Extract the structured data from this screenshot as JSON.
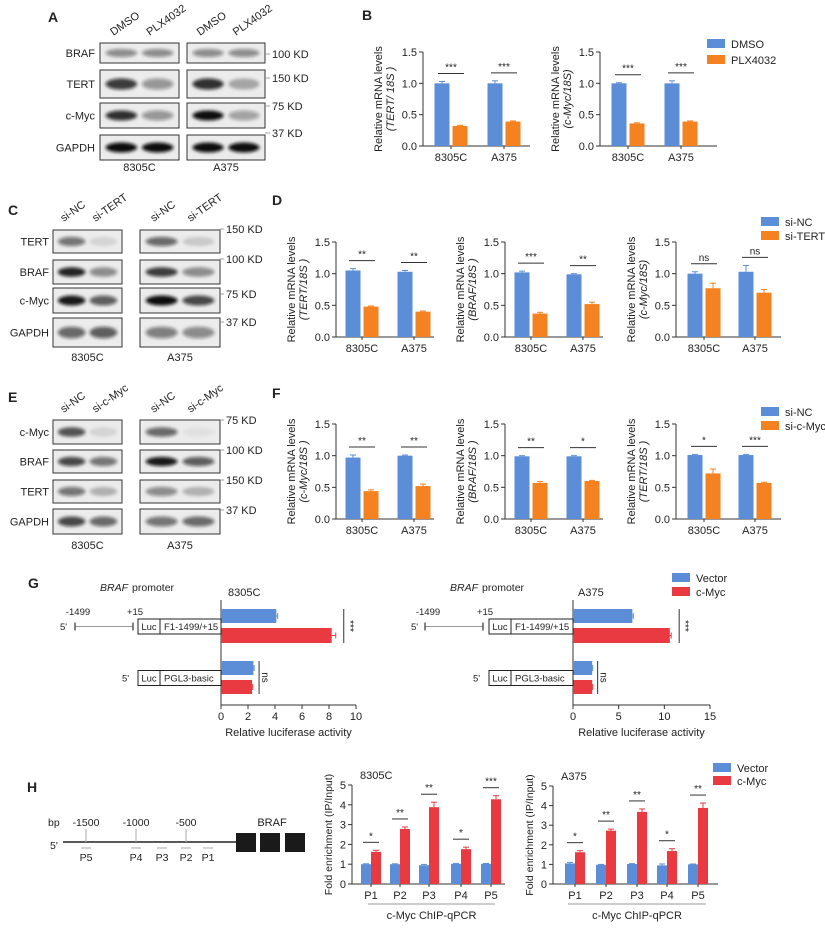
{
  "panel_labels": [
    "A",
    "B",
    "C",
    "D",
    "E",
    "F",
    "G",
    "H"
  ],
  "blots": [
    {
      "panel": "A",
      "columns": [
        "DMSO",
        "PLX4032",
        "DMSO",
        "PLX4032"
      ],
      "cell_lines": [
        "8305C",
        "A375"
      ],
      "rows": [
        {
          "protein": "BRAF",
          "mw": "100 KD",
          "band_intensity": [
            0.45,
            0.45,
            0.45,
            0.45
          ]
        },
        {
          "protein": "TERT",
          "mw": "150 KD",
          "band_intensity": [
            0.8,
            0.4,
            0.85,
            0.3
          ]
        },
        {
          "protein": "c-Myc",
          "mw": "75 KD",
          "band_intensity": [
            0.85,
            0.4,
            1.0,
            0.35
          ]
        },
        {
          "protein": "GAPDH",
          "mw": "37 KD",
          "band_intensity": [
            1.0,
            1.0,
            1.0,
            1.0
          ]
        }
      ]
    },
    {
      "panel": "C",
      "columns": [
        "si-NC",
        "si-TERT",
        "si-NC",
        "si-TERT"
      ],
      "cell_lines": [
        "8305C",
        "A375"
      ],
      "rows": [
        {
          "protein": "TERT",
          "mw": "150 KD",
          "band_intensity": [
            0.55,
            0.1,
            0.6,
            0.15
          ]
        },
        {
          "protein": "BRAF",
          "mw": "100 KD",
          "band_intensity": [
            0.9,
            0.45,
            0.8,
            0.45
          ]
        },
        {
          "protein": "c-Myc",
          "mw": "75 KD",
          "band_intensity": [
            0.95,
            0.65,
            1.0,
            0.75
          ]
        },
        {
          "protein": "GAPDH",
          "mw": "37 KD",
          "band_intensity": [
            0.6,
            0.65,
            0.5,
            0.45
          ]
        }
      ]
    },
    {
      "panel": "E",
      "columns": [
        "si-NC",
        "si-c-Myc",
        "si-NC",
        "si-c-Myc"
      ],
      "cell_lines": [
        "8305C",
        "A375"
      ],
      "rows": [
        {
          "protein": "c-Myc",
          "mw": "75 KD",
          "band_intensity": [
            0.7,
            0.1,
            0.6,
            0.05
          ]
        },
        {
          "protein": "BRAF",
          "mw": "100 KD",
          "band_intensity": [
            0.75,
            0.55,
            0.95,
            0.65
          ]
        },
        {
          "protein": "TERT",
          "mw": "150 KD",
          "band_intensity": [
            0.55,
            0.25,
            0.45,
            0.25
          ]
        },
        {
          "protein": "GAPDH",
          "mw": "37 KD",
          "band_intensity": [
            0.75,
            0.6,
            0.55,
            0.6
          ]
        }
      ]
    }
  ],
  "chart_data": [
    {
      "panel": "B",
      "type": "bar",
      "categories": [
        "8305C",
        "A375"
      ],
      "ylabel": [
        "Relative mRNA levels",
        "(TERT/ 18S )"
      ],
      "ylim": [
        0,
        1.5
      ],
      "yticks": [
        "0.0",
        "0.5",
        "1.0",
        "1.5"
      ],
      "series": [
        {
          "name": "DMSO",
          "color": "#5b8ed6",
          "values": [
            1.0,
            1.0
          ],
          "errors": [
            0.03,
            0.04
          ]
        },
        {
          "name": "PLX4032",
          "color": "#f58220",
          "values": [
            0.32,
            0.39
          ],
          "errors": [
            0.01,
            0.01
          ]
        }
      ],
      "significance": [
        "***",
        "***"
      ]
    },
    {
      "panel": "B",
      "type": "bar",
      "categories": [
        "8305C",
        "A375"
      ],
      "ylabel": [
        "Relative mRNA levels",
        "(c-Myc/18S)"
      ],
      "ylim": [
        0,
        1.5
      ],
      "yticks": [
        "0.0",
        "0.5",
        "1.0",
        "1.5"
      ],
      "series": [
        {
          "name": "DMSO",
          "color": "#5b8ed6",
          "values": [
            1.0,
            1.0
          ],
          "errors": [
            0.01,
            0.04
          ]
        },
        {
          "name": "PLX4032",
          "color": "#f58220",
          "values": [
            0.36,
            0.39
          ],
          "errors": [
            0.01,
            0.01
          ]
        }
      ],
      "significance": [
        "***",
        "***"
      ]
    },
    {
      "panel": "D",
      "type": "bar",
      "categories": [
        "8305C",
        "A375"
      ],
      "ylabel": [
        "Relative mRNA levels",
        "(TERT/18S )"
      ],
      "ylim": [
        0,
        1.5
      ],
      "yticks": [
        "0.0",
        "0.5",
        "1.0",
        "1.5"
      ],
      "series": [
        {
          "name": "si-NC",
          "color": "#5b8ed6",
          "values": [
            1.05,
            1.03
          ],
          "errors": [
            0.03,
            0.02
          ]
        },
        {
          "name": "si-TERT",
          "color": "#f58220",
          "values": [
            0.48,
            0.4
          ],
          "errors": [
            0.01,
            0.01
          ]
        }
      ],
      "significance": [
        "**",
        "**"
      ]
    },
    {
      "panel": "D",
      "type": "bar",
      "categories": [
        "8305C",
        "A375"
      ],
      "ylabel": [
        "Relative mRNA levels",
        "(BRAF/18S )"
      ],
      "ylim": [
        0,
        1.5
      ],
      "yticks": [
        "0.0",
        "0.5",
        "1.0",
        "1.5"
      ],
      "series": [
        {
          "name": "si-NC",
          "color": "#5b8ed6",
          "values": [
            1.02,
            0.99
          ],
          "errors": [
            0.02,
            0.01
          ]
        },
        {
          "name": "si-TERT",
          "color": "#f58220",
          "values": [
            0.37,
            0.52
          ],
          "errors": [
            0.02,
            0.03
          ]
        }
      ],
      "significance": [
        "***",
        "**"
      ]
    },
    {
      "panel": "D",
      "type": "bar",
      "categories": [
        "8305C",
        "A375"
      ],
      "ylabel": [
        "Relative mRNA levels",
        "(c-Myc/18S)"
      ],
      "ylim": [
        0,
        1.5
      ],
      "yticks": [
        "0.0",
        "0.5",
        "1.0",
        "1.5"
      ],
      "series": [
        {
          "name": "si-NC",
          "color": "#5b8ed6",
          "values": [
            1.0,
            1.03
          ],
          "errors": [
            0.03,
            0.1
          ]
        },
        {
          "name": "si-TERT",
          "color": "#f58220",
          "values": [
            0.77,
            0.7
          ],
          "errors": [
            0.08,
            0.05
          ]
        }
      ],
      "significance": [
        "ns",
        "ns"
      ]
    },
    {
      "panel": "F",
      "type": "bar",
      "categories": [
        "8305C",
        "A375"
      ],
      "ylabel": [
        "Relative mRNA levels",
        "(c-Myc/18S )"
      ],
      "ylim": [
        0,
        1.5
      ],
      "yticks": [
        "0.0",
        "0.5",
        "1.0",
        "1.5"
      ],
      "series": [
        {
          "name": "si-NC",
          "color": "#5b8ed6",
          "values": [
            0.97,
            1.0
          ],
          "errors": [
            0.04,
            0.01
          ]
        },
        {
          "name": "si-c-Myc",
          "color": "#f58220",
          "values": [
            0.44,
            0.52
          ],
          "errors": [
            0.02,
            0.03
          ]
        }
      ],
      "significance": [
        "**",
        "**"
      ]
    },
    {
      "panel": "F",
      "type": "bar",
      "categories": [
        "8305C",
        "A375"
      ],
      "ylabel": [
        "Relative mRNA levels",
        "(BRAF/18S )"
      ],
      "ylim": [
        0,
        1.5
      ],
      "yticks": [
        "0.0",
        "0.5",
        "1.0",
        "1.5"
      ],
      "series": [
        {
          "name": "si-NC",
          "color": "#5b8ed6",
          "values": [
            0.99,
            0.99
          ],
          "errors": [
            0.01,
            0.01
          ]
        },
        {
          "name": "si-c-Myc",
          "color": "#f58220",
          "values": [
            0.57,
            0.6
          ],
          "errors": [
            0.02,
            0.01
          ]
        }
      ],
      "significance": [
        "**",
        "*"
      ]
    },
    {
      "panel": "F",
      "type": "bar",
      "categories": [
        "8305C",
        "A375"
      ],
      "ylabel": [
        "Relative mRNA levels",
        "(TERT/18S )"
      ],
      "ylim": [
        0,
        1.5
      ],
      "yticks": [
        "0.0",
        "0.5",
        "1.0",
        "1.5"
      ],
      "series": [
        {
          "name": "si-NC",
          "color": "#5b8ed6",
          "values": [
            1.01,
            1.01
          ],
          "errors": [
            0.01,
            0.01
          ]
        },
        {
          "name": "si-c-Myc",
          "color": "#f58220",
          "values": [
            0.72,
            0.57
          ],
          "errors": [
            0.07,
            0.01
          ]
        }
      ],
      "significance": [
        "*",
        "***"
      ]
    },
    {
      "panel": "G",
      "type": "bar",
      "orientation": "horizontal",
      "title": "8305C",
      "categories": [
        "F1-1499/+15",
        "PGL3-basic"
      ],
      "xlabel": "Relative luciferase activity",
      "xlim": [
        0,
        10
      ],
      "xticks": [
        "0",
        "2",
        "4",
        "6",
        "8",
        "10"
      ],
      "series": [
        {
          "name": "Vector",
          "color": "#5b8ed6",
          "values": [
            4.1,
            2.4
          ],
          "errors": [
            0.1,
            0.05
          ]
        },
        {
          "name": "c-Myc",
          "color": "#e83a40",
          "values": [
            8.2,
            2.3
          ],
          "errors": [
            0.3,
            0.05
          ]
        }
      ],
      "significance": [
        "***",
        "ns"
      ]
    },
    {
      "panel": "G",
      "type": "bar",
      "orientation": "horizontal",
      "title": "A375",
      "categories": [
        "F1-1499/+15",
        "PGL3-basic"
      ],
      "xlabel": "Relative luciferase activity",
      "xlim": [
        0,
        15
      ],
      "xticks": [
        "0",
        "5",
        "10",
        "15"
      ],
      "series": [
        {
          "name": "Vector",
          "color": "#5b8ed6",
          "values": [
            6.5,
            2.1
          ],
          "errors": [
            0.1,
            0.05
          ]
        },
        {
          "name": "c-Myc",
          "color": "#e83a40",
          "values": [
            10.6,
            2.1
          ],
          "errors": [
            0.15,
            0.05
          ]
        }
      ],
      "significance": [
        "***",
        "ns"
      ]
    },
    {
      "panel": "H",
      "type": "bar",
      "title": "8305C",
      "categories": [
        "P1",
        "P2",
        "P3",
        "P4",
        "P5"
      ],
      "ylabel": [
        "Fold enrichment (IP/Input)"
      ],
      "xlabel": "c-Myc ChIP-qPCR",
      "ylim": [
        0,
        5
      ],
      "yticks": [
        "0",
        "1",
        "2",
        "3",
        "4",
        "5"
      ],
      "series": [
        {
          "name": "Vector",
          "color": "#5b8ed6",
          "values": [
            1.0,
            1.0,
            0.95,
            1.02,
            1.02
          ],
          "errors": [
            0.02,
            0.02,
            0.04,
            0.02,
            0.02
          ]
        },
        {
          "name": "c-Myc",
          "color": "#e83a40",
          "values": [
            1.62,
            2.78,
            3.88,
            1.76,
            4.28
          ],
          "errors": [
            0.08,
            0.1,
            0.25,
            0.1,
            0.18
          ]
        }
      ],
      "significance": [
        "*",
        "**",
        "**",
        "*",
        "***"
      ]
    },
    {
      "panel": "H",
      "type": "bar",
      "title": "A375",
      "categories": [
        "P1",
        "P2",
        "P3",
        "P4",
        "P5"
      ],
      "ylabel": [
        "Fold enrichment (IP/Input)"
      ],
      "xlabel": "c-Myc ChIP-qPCR",
      "ylim": [
        0,
        5
      ],
      "yticks": [
        "0",
        "1",
        "2",
        "3",
        "4",
        "5"
      ],
      "series": [
        {
          "name": "Vector",
          "color": "#5b8ed6",
          "values": [
            1.05,
            0.98,
            1.02,
            0.95,
            1.0
          ],
          "errors": [
            0.05,
            0.02,
            0.02,
            0.07,
            0.02
          ]
        },
        {
          "name": "c-Myc",
          "color": "#e83a40",
          "values": [
            1.62,
            2.72,
            3.68,
            1.68,
            3.88
          ],
          "errors": [
            0.08,
            0.08,
            0.15,
            0.12,
            0.25
          ]
        }
      ],
      "significance": [
        "*",
        "**",
        "**",
        "*",
        "**"
      ]
    }
  ],
  "g_panel": {
    "gene": "BRAF",
    "promoter": "promoter",
    "luc": "Luc",
    "five_prime": "5'",
    "start": "-1499",
    "end": "+15"
  },
  "h_diagram": {
    "bp": "bp",
    "five_prime": "5'",
    "positions": [
      "-1500",
      "-1000",
      "-500"
    ],
    "gene": "BRAF",
    "primers": [
      "P5",
      "P4",
      "P3",
      "P2",
      "P1"
    ]
  }
}
